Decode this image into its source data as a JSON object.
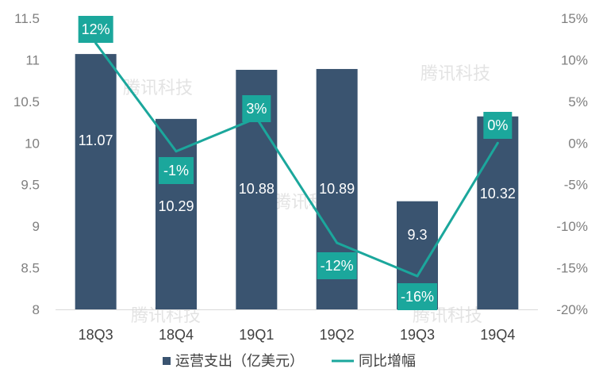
{
  "chart_data": {
    "type": "bar",
    "categories": [
      "18Q3",
      "18Q4",
      "19Q1",
      "19Q2",
      "19Q3",
      "19Q4"
    ],
    "series": [
      {
        "name": "运营支出（亿美元）",
        "type": "bar",
        "axis": "left",
        "values": [
          11.07,
          10.29,
          10.88,
          10.89,
          9.3,
          10.32
        ],
        "labels": [
          "11.07",
          "10.29",
          "10.88",
          "10.89",
          "9.3",
          "10.32"
        ]
      },
      {
        "name": "同比增幅",
        "type": "line",
        "axis": "right",
        "values": [
          12,
          -1,
          3,
          -12,
          -16,
          0
        ],
        "labels": [
          "12%",
          "-1%",
          "3%",
          "-12%",
          "-16%",
          "0%"
        ]
      }
    ],
    "ylim_left": [
      8,
      11.5
    ],
    "yticks_left": [
      "8",
      "8.5",
      "9",
      "9.5",
      "10",
      "10.5",
      "11",
      "11.5"
    ],
    "ylim_right": [
      -20,
      15
    ],
    "yticks_right": [
      "-20%",
      "-15%",
      "-10%",
      "-5%",
      "0%",
      "5%",
      "10%",
      "15%"
    ],
    "grid": false,
    "legend_position": "bottom",
    "colors": {
      "bar": "#3a5470",
      "line": "#1ba79c",
      "line_label_bg": "#1ba79c"
    }
  },
  "watermark": "腾讯科技"
}
